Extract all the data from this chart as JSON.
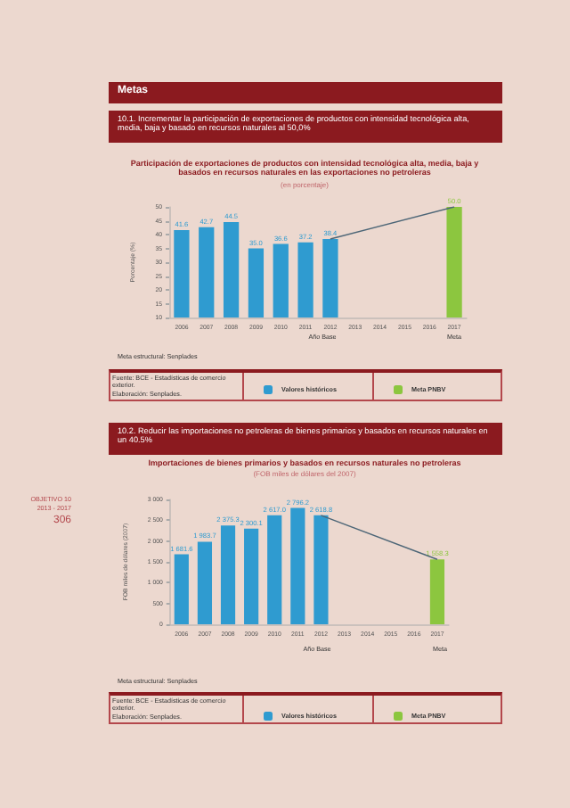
{
  "chart_data": [
    {
      "type": "bar",
      "title": "Participación de exportaciones de productos con intensidad tecnológica alta, media, baja y basados en recursos naturales en las exportaciones no petroleras",
      "subtitle": "(en porcentaje)",
      "ylabel": "Porcentaje (%)",
      "annotations": [
        "Metas",
        "10.1. Incrementar la participación de exportaciones de productos con intensidad tecnológica alta, media, baja y basado en recursos naturales al 50,0%",
        "Año Base",
        "Meta",
        "Meta estructural: Senplades",
        "Fuente: BCE - Estadísticas de comercio exterior.",
        "Elaboración: Senplades."
      ],
      "categories": [
        "2006",
        "2007",
        "2008",
        "2009",
        "2010",
        "2011",
        "2012",
        "2013",
        "2014",
        "2015",
        "2016",
        "2017"
      ],
      "series": [
        {
          "name": "Valores históricos",
          "color": "#2f9bd0",
          "values": [
            41.6,
            42.7,
            44.5,
            35.0,
            36.6,
            37.2,
            38.4,
            null,
            null,
            null,
            null,
            null
          ],
          "value_labels": [
            "41.6",
            "42.7",
            "44.5",
            "35.0",
            "36.6",
            "37.2",
            "38.4",
            null,
            null,
            null,
            null,
            null
          ]
        },
        {
          "name": "Meta PNBV",
          "color": "#8cc63f",
          "values": [
            null,
            null,
            null,
            null,
            null,
            null,
            null,
            null,
            null,
            null,
            null,
            50.0
          ],
          "value_labels": [
            null,
            null,
            null,
            null,
            null,
            null,
            null,
            null,
            null,
            null,
            null,
            "50.0"
          ]
        },
        {
          "type": "line",
          "color": "#4d6677",
          "values": [
            null,
            null,
            null,
            null,
            null,
            null,
            38.4,
            null,
            null,
            null,
            null,
            50
          ]
        }
      ],
      "ylim": [
        10,
        50
      ],
      "yticks": [
        10,
        15,
        20,
        25,
        30,
        35,
        40,
        45,
        50
      ],
      "grid": false,
      "legend": "bottom",
      "marker": "none"
    },
    {
      "type": "bar",
      "title": "Importaciones de bienes primarios y basados en recursos naturales no petroleras",
      "subtitle": "(FOB miles de dólares del 2007)",
      "ylabel": "FOB miles de dólares (2007)",
      "annotations": [
        "10.2. Reducir las importaciones no petroleras de bienes primarios y basados en recursos naturales en un 40.5%",
        "Año Base",
        "Meta",
        "Meta estructural: Senplades",
        "Fuente: BCE - Estadísticas de comercio exterior.",
        "Elaboración: Senplades.",
        "OBJETIVO 10",
        "2013 - 2017",
        "306"
      ],
      "categories": [
        "2006",
        "2007",
        "2008",
        "2009",
        "2010",
        "2011",
        "2012",
        "2013",
        "2014",
        "2015",
        "2016",
        "2017"
      ],
      "series": [
        {
          "name": "Valores históricos",
          "color": "#2f9bd0",
          "values": [
            1681.6,
            1983.7,
            2375.3,
            2300.1,
            2617.0,
            2796.2,
            2618.8,
            null,
            null,
            null,
            null,
            null
          ],
          "value_labels": [
            "1 681.6",
            "1 983.7",
            "2 375.3",
            "2 300.1",
            "2 617.0",
            "2 796.2",
            "2 618.8",
            null,
            null,
            null,
            null,
            null
          ]
        },
        {
          "name": "Meta PNBV",
          "color": "#8cc63f",
          "values": [
            null,
            null,
            null,
            null,
            null,
            null,
            null,
            null,
            null,
            null,
            null,
            1558.3
          ],
          "value_labels": [
            null,
            null,
            null,
            null,
            null,
            null,
            null,
            null,
            null,
            null,
            null,
            "1 558.3"
          ]
        },
        {
          "type": "line",
          "color": "#4d6677",
          "values": [
            null,
            null,
            null,
            null,
            null,
            null,
            2618.8,
            null,
            null,
            null,
            null,
            1558.3
          ]
        }
      ],
      "ylim": [
        0,
        3000
      ],
      "yticks": [
        0,
        {
          "value": 500,
          "label": "500"
        },
        {
          "value": 1000,
          "label": "1 000"
        },
        {
          "value": 1500,
          "label": "1 500"
        },
        {
          "value": 2000,
          "label": "2 000"
        },
        {
          "value": 2500,
          "label": "2 500"
        },
        {
          "value": 3000,
          "label": "3 000"
        }
      ],
      "grid": false,
      "legend": "bottom",
      "marker": "none"
    }
  ]
}
